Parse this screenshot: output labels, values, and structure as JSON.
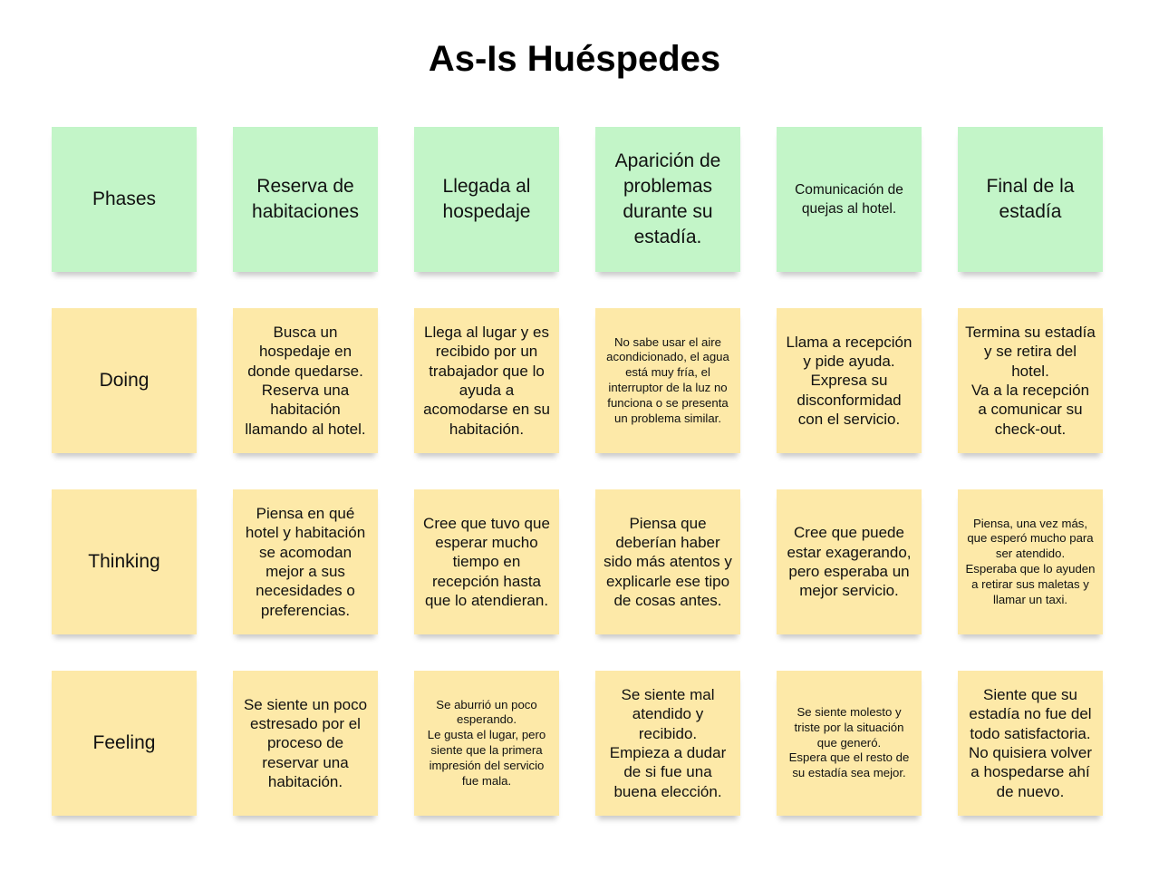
{
  "title": "As-Is Huéspedes",
  "colors": {
    "phase_note": "#c3f5c8",
    "activity_note": "#fde9a8",
    "background": "#ffffff"
  },
  "phases": {
    "label": "Phases",
    "items": [
      "Reserva de habitaciones",
      "Llegada al hospedaje",
      "Aparición de problemas durante su estadía.",
      "Comunicación de quejas al hotel.",
      "Final de la estadía"
    ]
  },
  "doing": {
    "label": "Doing",
    "items": [
      "Busca un hospedaje en donde quedarse.\nReserva una habitación llamando al hotel.",
      "Llega al lugar y es recibido por un trabajador que lo ayuda a acomodarse en su habitación.",
      "No sabe usar el aire acondicionado, el agua está muy fría, el interruptor de la luz no funciona o se presenta un problema similar.",
      "Llama a recepción y pide ayuda.\nExpresa su disconformidad con el servicio.",
      "Termina su estadía y se retira del hotel.\nVa a la recepción a comunicar su check-out."
    ]
  },
  "thinking": {
    "label": "Thinking",
    "items": [
      "Piensa en qué hotel y habitación se acomodan mejor a sus necesidades o preferencias.",
      "Cree que tuvo que esperar mucho tiempo en recepción hasta que lo atendieran.",
      "Piensa que deberían haber sido más atentos y explicarle ese tipo de cosas antes.",
      "Cree que puede estar exagerando, pero esperaba un mejor servicio.",
      "Piensa, una vez más, que esperó mucho para ser atendido.\nEsperaba que lo ayuden a retirar sus maletas y llamar un taxi."
    ]
  },
  "feeling": {
    "label": "Feeling",
    "items": [
      "Se siente un poco estresado por el proceso de reservar una habitación.",
      "Se aburrió un poco esperando.\nLe gusta el lugar, pero siente que la primera impresión del servicio fue mala.",
      "Se siente mal atendido y recibido.\nEmpieza a dudar de si fue una buena elección.",
      "Se siente molesto y triste por la situación que generó.\nEspera que el resto de su estadía sea mejor.",
      "Siente que su estadía no fue del todo satisfactoria.\nNo quisiera volver a hospedarse ahí de nuevo."
    ]
  }
}
